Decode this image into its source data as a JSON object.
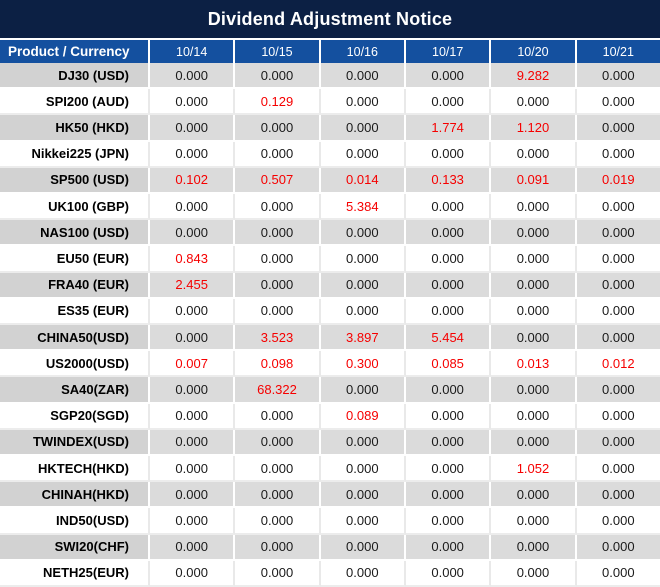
{
  "title": "Dividend Adjustment Notice",
  "colors": {
    "title_bar_bg": "#0C2044",
    "header_bg": "#14509F",
    "header_text": "#FFFFFF",
    "row_gray_first_col": "#D2D2D2",
    "row_gray_data": "#DBDBDB",
    "row_white": "#FFFFFF",
    "value_text": "#1A1A1A",
    "highlight_red": "#F60000"
  },
  "table": {
    "product_header": "Product / Currency",
    "date_headers": [
      "10/14",
      "10/15",
      "10/16",
      "10/17",
      "10/20",
      "10/21"
    ],
    "rows": [
      {
        "product": "DJ30 (USD)",
        "values": [
          "0.000",
          "0.000",
          "0.000",
          "0.000",
          "9.282",
          "0.000"
        ],
        "red_indices": [
          4
        ]
      },
      {
        "product": "SPI200 (AUD)",
        "values": [
          "0.000",
          "0.129",
          "0.000",
          "0.000",
          "0.000",
          "0.000"
        ],
        "red_indices": [
          1
        ]
      },
      {
        "product": "HK50 (HKD)",
        "values": [
          "0.000",
          "0.000",
          "0.000",
          "1.774",
          "1.120",
          "0.000"
        ],
        "red_indices": [
          3,
          4
        ]
      },
      {
        "product": "Nikkei225 (JPN)",
        "values": [
          "0.000",
          "0.000",
          "0.000",
          "0.000",
          "0.000",
          "0.000"
        ],
        "red_indices": []
      },
      {
        "product": "SP500 (USD)",
        "values": [
          "0.102",
          "0.507",
          "0.014",
          "0.133",
          "0.091",
          "0.019"
        ],
        "red_indices": [
          0,
          1,
          2,
          3,
          4,
          5
        ]
      },
      {
        "product": "UK100 (GBP)",
        "values": [
          "0.000",
          "0.000",
          "5.384",
          "0.000",
          "0.000",
          "0.000"
        ],
        "red_indices": [
          2
        ]
      },
      {
        "product": "NAS100 (USD)",
        "values": [
          "0.000",
          "0.000",
          "0.000",
          "0.000",
          "0.000",
          "0.000"
        ],
        "red_indices": []
      },
      {
        "product": "EU50 (EUR)",
        "values": [
          "0.843",
          "0.000",
          "0.000",
          "0.000",
          "0.000",
          "0.000"
        ],
        "red_indices": [
          0
        ]
      },
      {
        "product": "FRA40 (EUR)",
        "values": [
          "2.455",
          "0.000",
          "0.000",
          "0.000",
          "0.000",
          "0.000"
        ],
        "red_indices": [
          0
        ]
      },
      {
        "product": "ES35 (EUR)",
        "values": [
          "0.000",
          "0.000",
          "0.000",
          "0.000",
          "0.000",
          "0.000"
        ],
        "red_indices": []
      },
      {
        "product": "CHINA50(USD)",
        "values": [
          "0.000",
          "3.523",
          "3.897",
          "5.454",
          "0.000",
          "0.000"
        ],
        "red_indices": [
          1,
          2,
          3
        ]
      },
      {
        "product": "US2000(USD)",
        "values": [
          "0.007",
          "0.098",
          "0.300",
          "0.085",
          "0.013",
          "0.012"
        ],
        "red_indices": [
          0,
          1,
          2,
          3,
          4,
          5
        ]
      },
      {
        "product": "SA40(ZAR)",
        "values": [
          "0.000",
          "68.322",
          "0.000",
          "0.000",
          "0.000",
          "0.000"
        ],
        "red_indices": [
          1
        ]
      },
      {
        "product": "SGP20(SGD)",
        "values": [
          "0.000",
          "0.000",
          "0.089",
          "0.000",
          "0.000",
          "0.000"
        ],
        "red_indices": [
          2
        ]
      },
      {
        "product": "TWINDEX(USD)",
        "values": [
          "0.000",
          "0.000",
          "0.000",
          "0.000",
          "0.000",
          "0.000"
        ],
        "red_indices": []
      },
      {
        "product": "HKTECH(HKD)",
        "values": [
          "0.000",
          "0.000",
          "0.000",
          "0.000",
          "1.052",
          "0.000"
        ],
        "red_indices": [
          4
        ]
      },
      {
        "product": "CHINAH(HKD)",
        "values": [
          "0.000",
          "0.000",
          "0.000",
          "0.000",
          "0.000",
          "0.000"
        ],
        "red_indices": []
      },
      {
        "product": "IND50(USD)",
        "values": [
          "0.000",
          "0.000",
          "0.000",
          "0.000",
          "0.000",
          "0.000"
        ],
        "red_indices": []
      },
      {
        "product": "SWI20(CHF)",
        "values": [
          "0.000",
          "0.000",
          "0.000",
          "0.000",
          "0.000",
          "0.000"
        ],
        "red_indices": []
      },
      {
        "product": "NETH25(EUR)",
        "values": [
          "0.000",
          "0.000",
          "0.000",
          "0.000",
          "0.000",
          "0.000"
        ],
        "red_indices": []
      }
    ]
  }
}
